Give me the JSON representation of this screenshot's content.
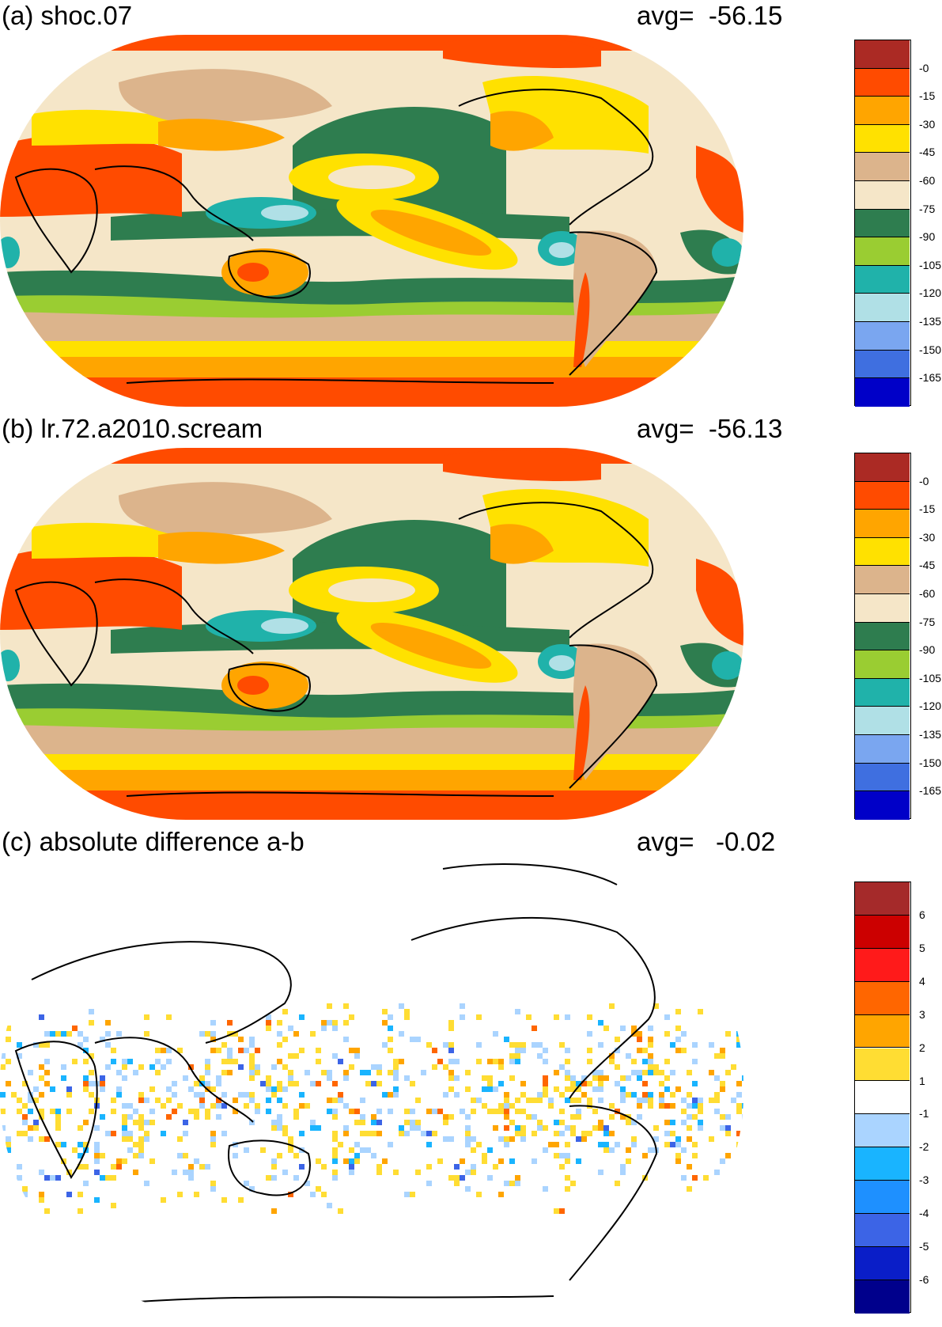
{
  "panels": [
    {
      "title": "(a) shoc.07",
      "avg_text": "avg=  -56.15",
      "colorbar": {
        "colors": [
          "#ab2a24",
          "#ff4b00",
          "#ffa500",
          "#ffe100",
          "#dcb48c",
          "#f5e6c8",
          "#2e7d4f",
          "#9acd32",
          "#20b2aa",
          "#b0e0e6",
          "#7aa6f0",
          "#3f6fe0",
          "#0000c8"
        ],
        "labels": [
          "-0",
          "-15",
          "-30",
          "-45",
          "-60",
          "-75",
          "-90",
          "-105",
          "-120",
          "-135",
          "-150",
          "-165"
        ]
      }
    },
    {
      "title": "(b) lr.72.a2010.scream",
      "avg_text": "avg=  -56.13",
      "colorbar": {
        "colors": [
          "#ab2a24",
          "#ff4b00",
          "#ffa500",
          "#ffe100",
          "#dcb48c",
          "#f5e6c8",
          "#2e7d4f",
          "#9acd32",
          "#20b2aa",
          "#b0e0e6",
          "#7aa6f0",
          "#3f6fe0",
          "#0000c8"
        ],
        "labels": [
          "-0",
          "-15",
          "-30",
          "-45",
          "-60",
          "-75",
          "-90",
          "-105",
          "-120",
          "-135",
          "-150",
          "-165"
        ]
      }
    },
    {
      "title": "(c) absolute difference a-b",
      "avg_text": "avg=   -0.02",
      "colorbar": {
        "colors": [
          "#a52a2a",
          "#cc0000",
          "#ff1a1a",
          "#ff6600",
          "#ffa500",
          "#ffdd33",
          "#ffffff",
          "#aad4ff",
          "#19b4ff",
          "#1e90ff",
          "#3c64e6",
          "#0a1ec8",
          "#00008c"
        ],
        "labels": [
          "6",
          "5",
          "4",
          "3",
          "2",
          "1",
          "-1",
          "-2",
          "-3",
          "-4",
          "-5",
          "-6"
        ]
      }
    }
  ]
}
